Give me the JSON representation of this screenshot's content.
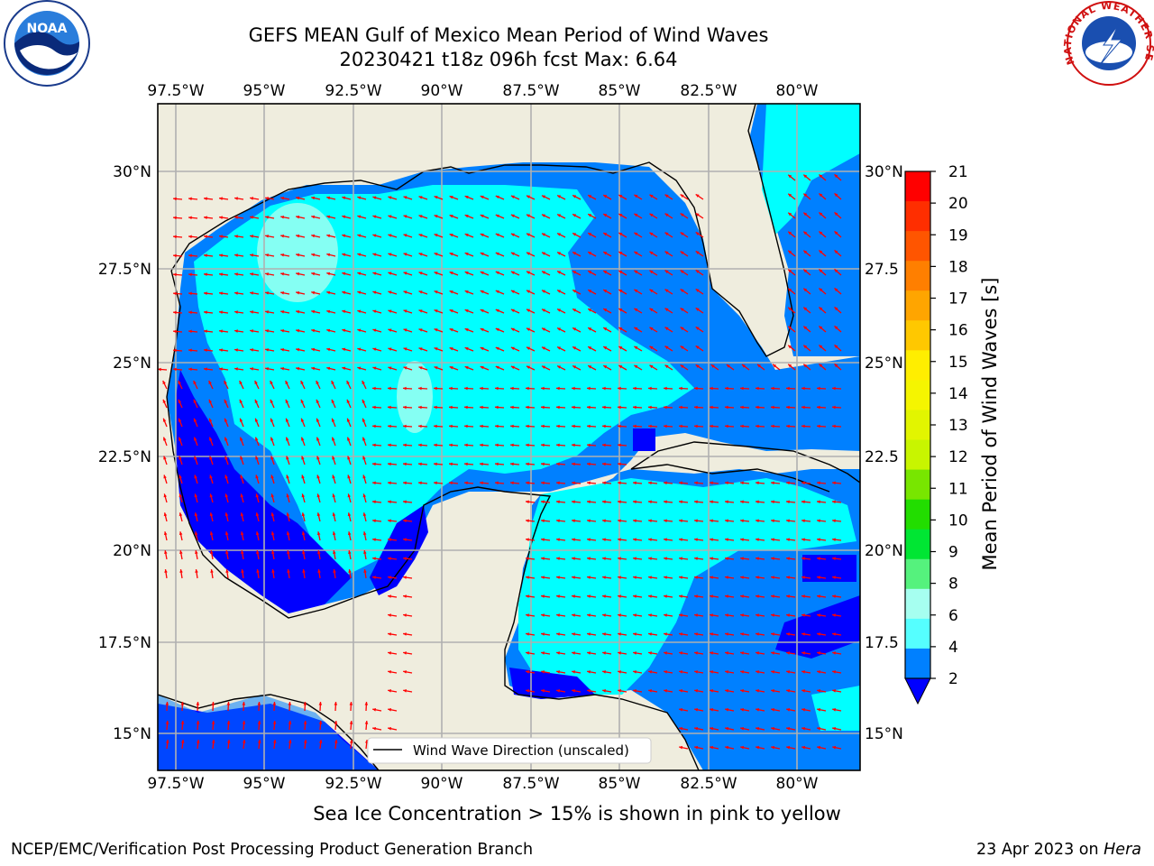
{
  "title": {
    "line1": "GEFS MEAN Gulf of Mexico Mean Period of Wind Waves",
    "line2": "20230421 t18z 096h fcst   Max: 6.64"
  },
  "map": {
    "lon_ticks_top": [
      "97.5°W",
      "95°W",
      "92.5°W",
      "90°W",
      "87.5°W",
      "85°W",
      "82.5°W",
      "80°W"
    ],
    "lon_ticks_bottom": [
      "97.5°W",
      "95°W",
      "92.5°W",
      "90°W",
      "87.5°W",
      "85°W",
      "82.5°W",
      "80°W"
    ],
    "lat_ticks_left": [
      "30°N",
      "27.5°N",
      "25°N",
      "22.5°N",
      "20°N",
      "17.5°N",
      "15°N"
    ],
    "lat_ticks_right": [
      "30°N",
      "27.5",
      "25°N",
      "22.5",
      "20°N",
      "17.5",
      "15°N"
    ],
    "legend_label": "Wind Wave Direction (unscaled)",
    "land_color": "#efedde",
    "grid_color": "#b0b0b0",
    "arrow_color": "#ff0000"
  },
  "colorbar": {
    "label": "Mean Period of Wind Waves [s]",
    "ticks": [
      "21",
      "20",
      "19",
      "18",
      "17",
      "16",
      "15",
      "14",
      "13",
      "12",
      "11",
      "10",
      "9",
      "8",
      "6",
      "4",
      "2"
    ],
    "colors": [
      "#ff0000",
      "#ff2e00",
      "#ff5500",
      "#ff7f00",
      "#ffa500",
      "#ffc800",
      "#ffee00",
      "#f5f500",
      "#e2f500",
      "#c8f500",
      "#78e600",
      "#22dd00",
      "#00e633",
      "#55f27d",
      "#a6fff0",
      "#55ffff",
      "#00ffff",
      "#0080ff"
    ],
    "under_color": "#0000ff"
  },
  "logos": {
    "noaa_text": "NOAA",
    "nws_text": "NATIONAL WEATHER SERVICE"
  },
  "ice_note": "Sea Ice Concentration > 15% is shown in pink to yellow",
  "footer": {
    "left": "NCEP/EMC/Verification Post Processing Product Generation Branch",
    "right_date": "23 Apr 2023 on ",
    "right_host": "Hera"
  }
}
